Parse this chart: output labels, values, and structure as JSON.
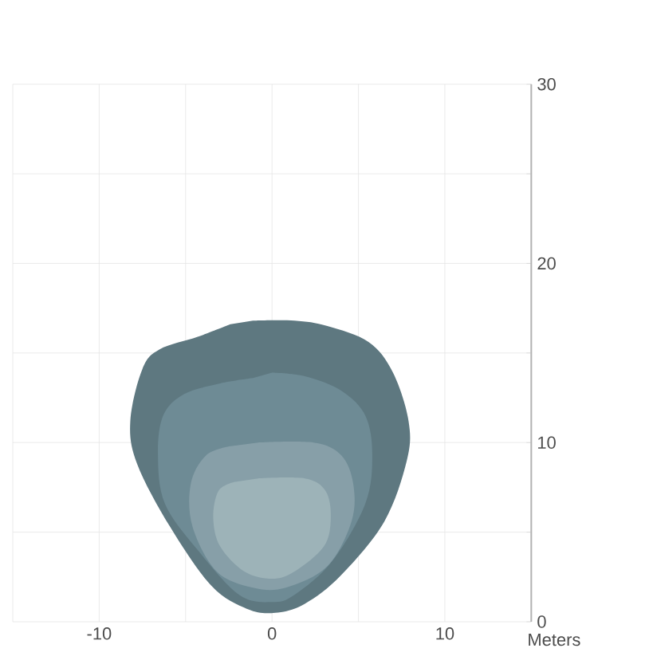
{
  "chart_data": {
    "type": "area",
    "xlabel": "Meters",
    "xlim": [
      -15,
      15
    ],
    "ylim": [
      0,
      30
    ],
    "xticks": [
      {
        "value": -15,
        "label": null
      },
      -10,
      {
        "value": -5,
        "label": null
      },
      0,
      {
        "value": 5,
        "label": null
      },
      10,
      {
        "value": 15,
        "label": null
      }
    ],
    "yticks": [
      0,
      {
        "value": 5,
        "label": null
      },
      10,
      {
        "value": 15,
        "label": null
      },
      20,
      {
        "value": 25,
        "label": null
      },
      30
    ],
    "grid": true,
    "series": [
      {
        "color": "#5e7880",
        "x": [
          -1.1,
          1.3,
          3.2,
          5.6,
          7.0,
          7.9,
          7.8,
          6.5,
          4.0,
          1.9,
          0.2,
          -1.4,
          -3.5,
          -5.9,
          -7.8,
          -8.2,
          -7.5,
          -6.5,
          -4.3,
          -2.4
        ],
        "values": [
          16.8,
          16.8,
          16.5,
          15.6,
          13.9,
          11.2,
          9.0,
          5.6,
          2.6,
          1.0,
          0.5,
          0.7,
          2.0,
          5.3,
          8.8,
          11.2,
          14.1,
          15.2,
          15.9,
          16.6
        ]
      },
      {
        "color": "#6e8b95",
        "x": [
          0,
          1.9,
          4.0,
          5.4,
          5.8,
          5.4,
          3.5,
          1.3,
          0,
          -1.9,
          -4.3,
          -6.2,
          -6.6,
          -6.3,
          -5.1,
          -3.0,
          -1.1
        ],
        "values": [
          13.9,
          13.7,
          12.9,
          11.5,
          9.3,
          6.6,
          3.4,
          1.5,
          1.1,
          1.5,
          4.0,
          6.6,
          9.3,
          11.5,
          12.7,
          13.3,
          13.6
        ]
      },
      {
        "color": "#879fa8",
        "x": [
          -0.8,
          2.4,
          4.0,
          4.7,
          4.6,
          3.2,
          0.8,
          -1.1,
          -3.2,
          -4.6,
          -4.7,
          -3.8,
          -2.4
        ],
        "values": [
          10.0,
          10.0,
          9.3,
          7.7,
          5.6,
          3.1,
          1.9,
          1.9,
          2.8,
          5.3,
          7.7,
          9.3,
          9.8
        ]
      },
      {
        "color": "#9db3b8",
        "x": [
          -0.8,
          1.9,
          3.1,
          3.4,
          3.0,
          1.3,
          0,
          -1.6,
          -3.0,
          -3.4,
          -3.1,
          -2.2
        ],
        "values": [
          8.0,
          8.0,
          7.3,
          5.8,
          4.2,
          2.8,
          2.4,
          2.8,
          4.2,
          5.8,
          7.3,
          7.8
        ]
      }
    ]
  }
}
